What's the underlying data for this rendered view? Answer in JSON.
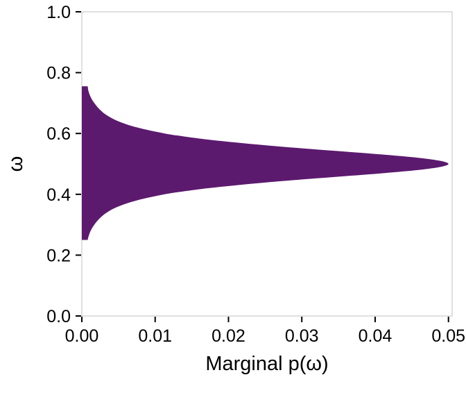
{
  "figure": {
    "background": "#ffffff"
  },
  "chart_data": {
    "type": "area",
    "orientation": "horizontal",
    "title": "",
    "xlabel": "Marginal p(ω)",
    "ylabel": "ω",
    "xlim": [
      0,
      0.0505
    ],
    "ylim": [
      0,
      1
    ],
    "x_tick_values": [
      0,
      0.01,
      0.02,
      0.03,
      0.04,
      0.05
    ],
    "x_tick_labels": [
      "0.00",
      "0.01",
      "0.02",
      "0.03",
      "0.04",
      "0.05"
    ],
    "y_tick_values": [
      0,
      0.2,
      0.4,
      0.6,
      0.8,
      1.0
    ],
    "y_tick_labels": [
      "0.0",
      "0.2",
      "0.4",
      "0.6",
      "0.8",
      "1.0"
    ],
    "grid": "off",
    "legend": "none",
    "fill_color": "#5c1a6f",
    "panel_border_color": "#d6d6d6",
    "tick_color": "#000000",
    "peak": {
      "omega": 0.5,
      "density": 0.05
    },
    "support": [
      0.25,
      0.755
    ],
    "series": [
      {
        "name": "marginal-density",
        "omega": [
          0.25,
          0.26,
          0.28,
          0.3,
          0.32,
          0.34,
          0.36,
          0.38,
          0.4,
          0.41,
          0.42,
          0.43,
          0.44,
          0.45,
          0.46,
          0.47,
          0.48,
          0.49,
          0.5,
          0.51,
          0.52,
          0.53,
          0.54,
          0.55,
          0.56,
          0.57,
          0.58,
          0.59,
          0.6,
          0.62,
          0.64,
          0.66,
          0.68,
          0.7,
          0.72,
          0.74,
          0.755
        ],
        "density": [
          0.0008,
          0.0009,
          0.0012,
          0.0017,
          0.0024,
          0.0034,
          0.005,
          0.0075,
          0.0113,
          0.014,
          0.0172,
          0.0211,
          0.0256,
          0.0307,
          0.0361,
          0.0414,
          0.0459,
          0.0489,
          0.05,
          0.0489,
          0.0459,
          0.0414,
          0.0361,
          0.0307,
          0.0256,
          0.0211,
          0.0172,
          0.014,
          0.0113,
          0.0075,
          0.005,
          0.0034,
          0.0024,
          0.0017,
          0.0012,
          0.0009,
          0.0008
        ]
      }
    ]
  }
}
